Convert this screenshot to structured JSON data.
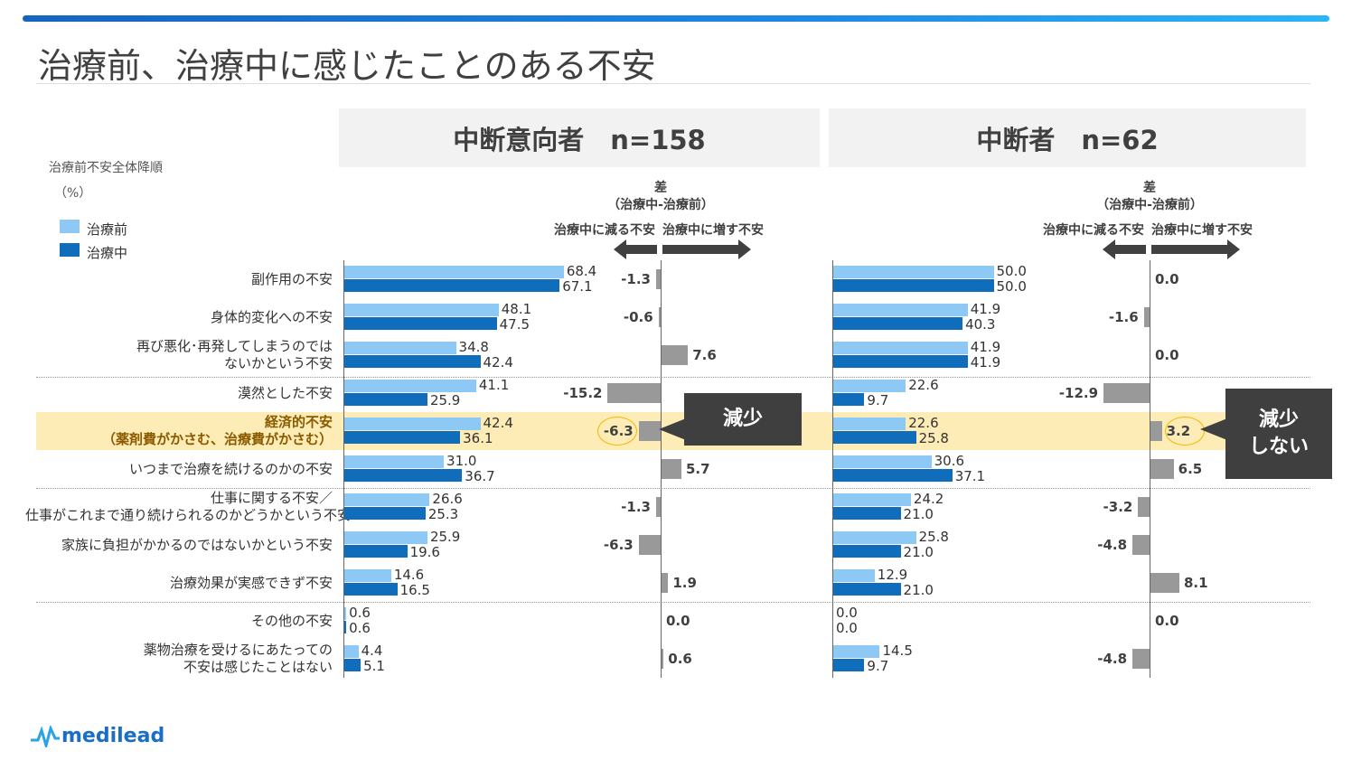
{
  "title": "治療前、治療中に感じたことのある不安",
  "sort_note": "治療前不安全体降順",
  "unit": "（%）",
  "legend": [
    {
      "name": "治療前",
      "color": "#8ec8f4"
    },
    {
      "name": "治療中",
      "color": "#0f6dbb"
    }
  ],
  "diff_header": {
    "title": "差",
    "subtitle": "（治療中-治療前）",
    "decrease": "治療中に減る不安",
    "increase": "治療中に増す不安"
  },
  "logo": "medilead",
  "chart_data": {
    "type": "bar",
    "categories": [
      "副作用の不安",
      "身体的変化への不安",
      "再び悪化･再発してしまうのでは\nないかという不安",
      "漠然とした不安",
      "経済的不安\n（薬剤費がかさむ、治療費がかさむ）",
      "いつまで治療を続けるのかの不安",
      "仕事に関する不安／\n仕事がこれまで通り続けられるのかどうかという不安",
      "家族に負担がかかるのではないかという不安",
      "治療効果が実感できず不安",
      "その他の不安",
      "薬物治療を受けるにあたっての\n不安は感じたことはない"
    ],
    "highlight_category": "経済的不安\n（薬剤費がかさむ、治療費がかさむ）",
    "diff_color": "#999999",
    "panels": [
      {
        "title": "中断意向者　n=158",
        "series": [
          {
            "name": "治療前",
            "values": [
              68.4,
              48.1,
              34.8,
              41.1,
              42.4,
              31.0,
              26.6,
              25.9,
              14.6,
              0.6,
              4.4
            ]
          },
          {
            "name": "治療中",
            "values": [
              67.1,
              47.5,
              42.4,
              25.9,
              36.1,
              36.7,
              25.3,
              19.6,
              16.5,
              0.6,
              5.1
            ]
          }
        ],
        "diff": [
          "-1.3",
          "-0.6",
          "7.6",
          "-15.2",
          "-6.3",
          "5.7",
          "-1.3",
          "-6.3",
          "1.9",
          "0.0",
          "0.6"
        ],
        "callout": "減少"
      },
      {
        "title": "中断者　n=62",
        "series": [
          {
            "name": "治療前",
            "values": [
              50.0,
              41.9,
              41.9,
              22.6,
              22.6,
              30.6,
              24.2,
              25.8,
              12.9,
              0.0,
              14.5
            ]
          },
          {
            "name": "治療中",
            "values": [
              50.0,
              40.3,
              41.9,
              9.7,
              25.8,
              37.1,
              21.0,
              21.0,
              21.0,
              0.0,
              9.7
            ]
          }
        ],
        "diff": [
          "0.0",
          "-1.6",
          "0.0",
          "-12.9",
          "3.2",
          "6.5",
          "-3.2",
          "-4.8",
          "8.1",
          "0.0",
          "-4.8"
        ],
        "callout": "減少\nしない"
      }
    ]
  }
}
